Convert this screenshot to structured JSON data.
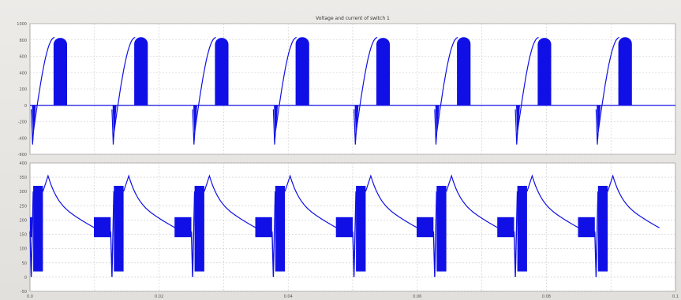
{
  "window": {
    "title": "Voltage and current of switch 1"
  },
  "colors": {
    "trace": "#1010e6",
    "grid": "#c8c8c8",
    "axes_bg": "#ffffff",
    "figure_bg": "#e8e6e2"
  },
  "chart_data": [
    {
      "type": "line",
      "title": "Voltage and current of switch 1",
      "xlabel": "",
      "ylabel": "",
      "xlim": [
        0,
        0.1
      ],
      "ylim": [
        -600,
        1000
      ],
      "yticks": [
        "1000",
        "800",
        "600",
        "400",
        "200",
        "0",
        "-200",
        "-400",
        "-600"
      ],
      "grid": true,
      "waveform": {
        "shape": "switch voltage: rising arc then solid PWM block, zero interval, negative spike",
        "period": 0.0125,
        "cycles": 8,
        "peak": 830,
        "negative_peak": -480
      }
    },
    {
      "type": "line",
      "title": "",
      "xlabel": "",
      "ylabel": "",
      "xlim": [
        0,
        0.1
      ],
      "ylim": [
        -50,
        400
      ],
      "yticks": [
        "400",
        "350",
        "300",
        "250",
        "200",
        "150",
        "100",
        "50",
        "0",
        "-50"
      ],
      "xticks": [
        "0.0",
        "0.02",
        "0.04",
        "0.06",
        "0.08",
        "0.1"
      ],
      "grid": true,
      "waveform": {
        "shape": "switch current: PWM band 140-210, spike to 0, peak ~355, decay to ~165",
        "period": 0.0125,
        "cycles": 8,
        "peak": 355,
        "minimum": 0
      }
    }
  ]
}
